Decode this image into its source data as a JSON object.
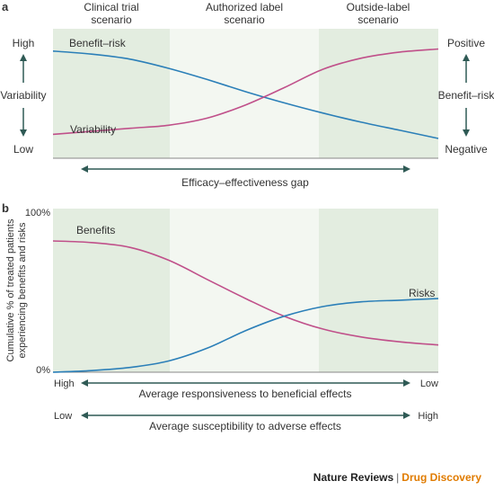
{
  "colors": {
    "panel_green": "#e3ede0",
    "panel_mid": "#f3f7f1",
    "blue": "#2b7fb8",
    "pink": "#c0508a",
    "arrow": "#2f5a55",
    "footer_accent": "#e07b00"
  },
  "panel_a": {
    "letter": "a",
    "scenarios": [
      "Clinical trial",
      "scenario",
      "Authorized label",
      "scenario",
      "Outside-label",
      "scenario"
    ],
    "left_axis": {
      "top": "High",
      "middle": "Variability",
      "bottom": "Low"
    },
    "right_axis": {
      "top": "Positive",
      "middle": "Benefit–risk",
      "bottom": "Negative"
    },
    "gap_label": "Efficacy–effectiveness gap"
  },
  "panel_b": {
    "letter": "b",
    "y_label_line1": "Cumulative % of treated patients",
    "y_label_line2": "experiencing benefits and risks",
    "y_max_label": "100%",
    "y_min_label": "0%",
    "responsiveness": {
      "left": "High",
      "right": "Low",
      "label": "Average responsiveness to beneficial effects"
    },
    "susceptibility": {
      "left": "Low",
      "right": "High",
      "label": "Average susceptibility to adverse effects"
    }
  },
  "footer": {
    "brand": "Nature Reviews",
    "separator": "|",
    "journal": "Drug Discovery"
  },
  "chart_data": [
    {
      "type": "line",
      "panel": "a",
      "x_range": [
        0,
        10
      ],
      "y_range": [
        0,
        1
      ],
      "series": [
        {
          "name": "Benefit–risk",
          "color": "#2b7fb8",
          "points": [
            [
              0,
              0.94
            ],
            [
              1,
              0.91
            ],
            [
              2,
              0.86
            ],
            [
              3,
              0.77
            ],
            [
              4,
              0.66
            ],
            [
              5,
              0.54
            ],
            [
              6,
              0.43
            ],
            [
              7,
              0.33
            ],
            [
              8,
              0.24
            ],
            [
              9,
              0.16
            ],
            [
              10,
              0.08
            ]
          ]
        },
        {
          "name": "Variability",
          "color": "#c0508a",
          "points": [
            [
              0,
              0.12
            ],
            [
              1,
              0.15
            ],
            [
              2,
              0.18
            ],
            [
              3,
              0.21
            ],
            [
              4,
              0.28
            ],
            [
              5,
              0.41
            ],
            [
              6,
              0.58
            ],
            [
              7,
              0.76
            ],
            [
              8,
              0.87
            ],
            [
              9,
              0.93
            ],
            [
              10,
              0.96
            ]
          ]
        }
      ]
    },
    {
      "type": "line",
      "panel": "b",
      "x_range": [
        0,
        10
      ],
      "y_range": [
        0,
        100
      ],
      "y_ticks": [
        "0%",
        "100%"
      ],
      "series": [
        {
          "name": "Benefits",
          "color": "#c0508a",
          "points": [
            [
              0,
              82
            ],
            [
              1,
              81
            ],
            [
              2,
              78
            ],
            [
              3,
              70
            ],
            [
              4,
              58
            ],
            [
              5,
              46
            ],
            [
              6,
              35
            ],
            [
              7,
              27
            ],
            [
              8,
              22
            ],
            [
              9,
              19
            ],
            [
              10,
              17
            ]
          ]
        },
        {
          "name": "Risks",
          "color": "#2b7fb8",
          "points": [
            [
              0,
              0
            ],
            [
              1,
              1
            ],
            [
              2,
              3
            ],
            [
              3,
              7
            ],
            [
              4,
              15
            ],
            [
              5,
              26
            ],
            [
              6,
              35
            ],
            [
              7,
              41
            ],
            [
              8,
              44
            ],
            [
              9,
              45
            ],
            [
              10,
              46
            ]
          ]
        }
      ]
    }
  ]
}
